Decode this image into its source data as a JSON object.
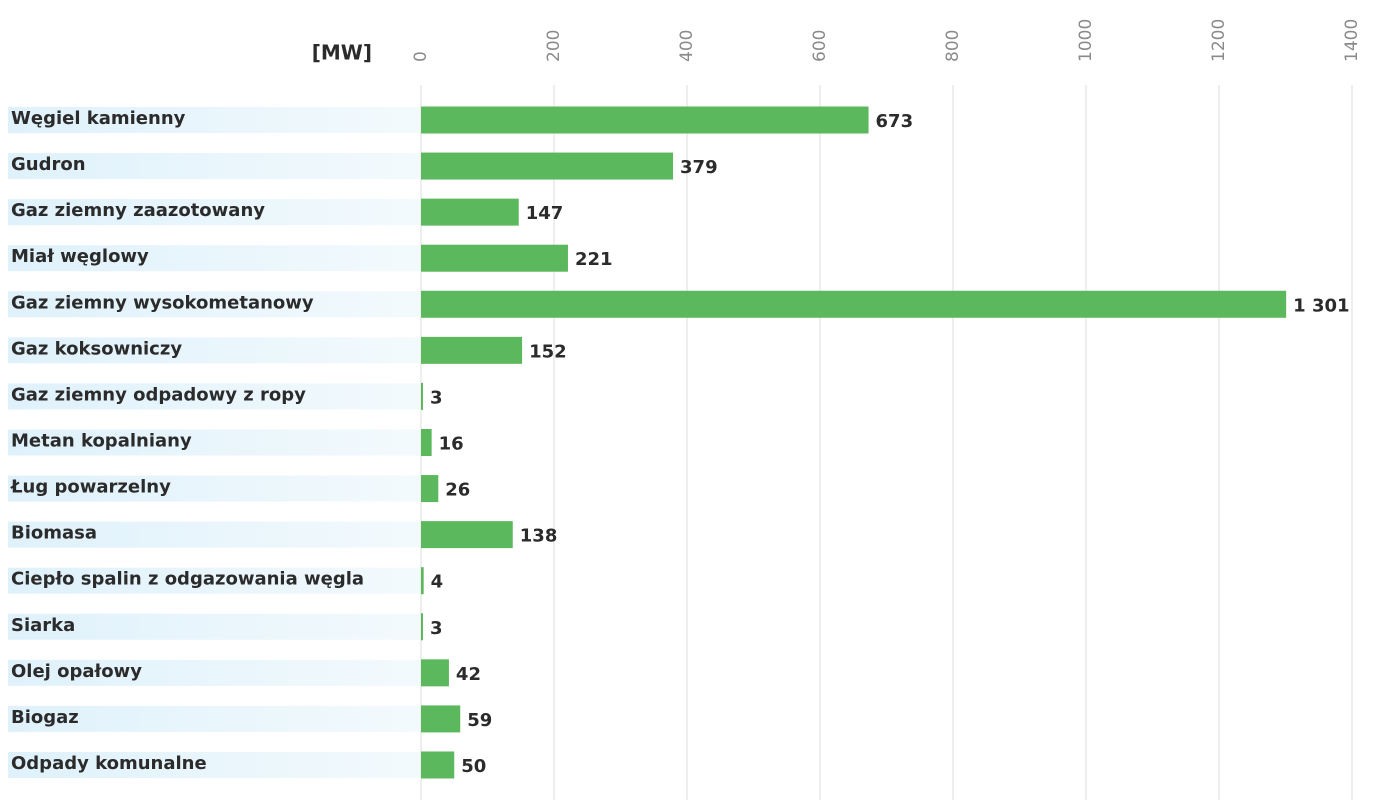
{
  "chart_data": {
    "type": "barh",
    "xlabel": "[MW]",
    "categories": [
      "Węgiel kamienny",
      "Gudron",
      "Gaz ziemny zaazotowany",
      "Miał węglowy",
      "Gaz ziemny wysokometanowy",
      "Gaz koksowniczy",
      "Gaz ziemny odpadowy z ropy",
      "Metan kopalniany",
      "Ług powarzelny",
      "Biomasa",
      "Ciepło spalin z odgazowania węgla",
      "Siarka",
      "Olej opałowy",
      "Biogaz",
      "Odpady komunalne"
    ],
    "values": [
      673,
      379,
      147,
      221,
      1301,
      152,
      3,
      16,
      26,
      138,
      4,
      3,
      42,
      59,
      50
    ],
    "value_labels": [
      "673",
      "379",
      "147",
      "221",
      "1 301",
      "152",
      "3",
      "16",
      "26",
      "138",
      "4",
      "3",
      "42",
      "59",
      "50"
    ],
    "color": "#5cb85c",
    "xlim": [
      0,
      1400
    ],
    "xticks": [
      0,
      200,
      400,
      600,
      800,
      1000,
      1200,
      1400
    ],
    "grid": true
  }
}
